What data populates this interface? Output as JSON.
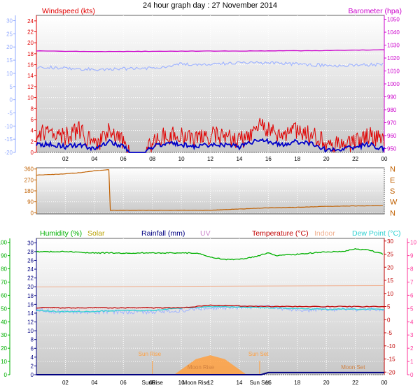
{
  "title": "24 hour graph day : 27 November 2014",
  "colors": {
    "wind": "#e00000",
    "wind_avg": "#0000c8",
    "baro": "#cc00cc",
    "temp_axis": "#8fa8ff",
    "dir": "#c06000",
    "humidity": "#00b000",
    "solar": "#b8a000",
    "rain": "#000080",
    "uv": "#cc88cc",
    "temperature": "#c00000",
    "indoor": "#f0b090",
    "dewpoint": "#30d0d0",
    "temp_line": "#a0b4ff",
    "sun": "#ffa040",
    "moon": "#d08040",
    "pink_axis": "#ff3399"
  },
  "chart_data": [
    {
      "type": "line",
      "title": "24 hour graph day : 27 November 2014",
      "x_ticks": [
        "02",
        "04",
        "06",
        "08",
        "10",
        "12",
        "14",
        "16",
        "18",
        "20",
        "22",
        "00"
      ],
      "labels": {
        "left": "Windspeed (kts)",
        "right": "Barometer (hpa)"
      },
      "left_axis": {
        "ticks": [
          0,
          2,
          4,
          6,
          8,
          10,
          12,
          14,
          16,
          18,
          20,
          22,
          24
        ],
        "ylim": [
          0,
          25
        ]
      },
      "outer_axis": {
        "ticks": [
          -20,
          -15,
          -10,
          -5,
          0,
          5,
          10,
          15,
          20,
          25,
          30
        ],
        "ylim": [
          -20,
          32
        ]
      },
      "right_axis": {
        "ticks": [
          950,
          960,
          970,
          980,
          990,
          1000,
          1010,
          1020,
          1030,
          1040,
          1050
        ],
        "ylim": [
          947,
          1053
        ]
      },
      "series": [
        {
          "key": "wind_gust",
          "x": [
            0,
            1,
            2,
            3,
            4,
            5,
            6,
            6.5,
            7,
            7.5,
            8,
            9,
            10,
            11,
            12,
            13,
            14,
            15,
            15.4,
            16,
            17,
            18,
            19,
            20,
            21,
            22,
            23,
            24
          ],
          "y": [
            3,
            4,
            3,
            4,
            1,
            4,
            2,
            0,
            0,
            0,
            2,
            3,
            3,
            2,
            3,
            3,
            2,
            4,
            6,
            4,
            3,
            4,
            3,
            2,
            1,
            2,
            3,
            2
          ]
        },
        {
          "key": "wind_avg",
          "x": [
            0,
            1,
            2,
            3,
            4,
            5,
            6,
            6.5,
            7,
            7.5,
            8,
            9,
            10,
            11,
            12,
            13,
            14,
            15,
            15.5,
            16,
            17,
            18,
            19,
            20,
            21,
            22,
            23,
            24
          ],
          "y": [
            1.5,
            1.5,
            1,
            1.5,
            0.5,
            2,
            1,
            0,
            0,
            0,
            1,
            1.5,
            1.5,
            1,
            1.5,
            1.5,
            1,
            2,
            2.5,
            2,
            1.5,
            2,
            1.5,
            0.5,
            0.5,
            1,
            1.5,
            0.5
          ]
        },
        {
          "key": "barometer",
          "x": [
            0,
            4,
            8,
            12,
            16,
            20,
            24
          ],
          "y": [
            1025.5,
            1025,
            1025.2,
            1025.4,
            1025.5,
            1025.8,
            1026.4
          ]
        },
        {
          "key": "temperature",
          "x": [
            0,
            4,
            8,
            10,
            12,
            14,
            16,
            18,
            20,
            22,
            24
          ],
          "y": [
            12.5,
            11.5,
            12,
            13.5,
            13.5,
            14,
            14,
            13.5,
            13,
            13,
            13.5
          ]
        }
      ]
    },
    {
      "type": "line",
      "x_ticks": [],
      "left_axis": {
        "ticks": [
          0,
          90,
          180,
          270,
          360
        ],
        "ylim": [
          -10,
          370
        ]
      },
      "right_axis": {
        "ticks": [
          "N",
          "W",
          "S",
          "E",
          "N"
        ]
      },
      "series": [
        {
          "key": "wind_direction",
          "x": [
            0,
            2,
            3,
            4,
            5,
            5.1,
            12,
            16,
            18,
            20,
            24
          ],
          "y": [
            310,
            320,
            330,
            345,
            355,
            20,
            20,
            40,
            45,
            52,
            60
          ]
        }
      ]
    },
    {
      "type": "line",
      "x_ticks": [
        "02",
        "04",
        "06",
        "08",
        "10",
        "12",
        "14",
        "16",
        "18",
        "20",
        "22",
        "00"
      ],
      "labels": {
        "humidity": "Humidity (%)",
        "solar": "Solar",
        "rainfall": "Rainfall (mm)",
        "uv": "UV",
        "temperature": "Temperature (°C)",
        "indoor": "Indoor",
        "dewpoint": "Dew Point (°C)"
      },
      "left_outer_axis": {
        "ticks": [
          0,
          10,
          20,
          30,
          40,
          50,
          60,
          70,
          80,
          90,
          100
        ]
      },
      "left_inner_axis": {
        "ticks": [
          0,
          2,
          4,
          6,
          8,
          10,
          12,
          14,
          16,
          18,
          20,
          22,
          24,
          26,
          28,
          30
        ]
      },
      "right_inner_axis": {
        "ticks": [
          -20,
          -15,
          -10,
          -5,
          0,
          5,
          10,
          15,
          20,
          25,
          30
        ]
      },
      "right_outer_axis": {
        "ticks": [
          0,
          1,
          2,
          3,
          4,
          5,
          6,
          7,
          8,
          9,
          10
        ]
      },
      "annotations": [
        "Sun Rise",
        "Sun Set",
        "Moon Rise",
        "Moon Set"
      ],
      "x_overlap_labels": [
        "SunRise",
        "Moon Rise",
        "Sun Set"
      ],
      "series": [
        {
          "key": "humidity",
          "x": [
            0,
            2,
            4,
            6,
            8,
            10,
            11,
            12,
            13,
            14,
            15,
            16,
            16.5,
            18,
            20,
            21,
            22,
            23,
            24
          ],
          "y": [
            93,
            93,
            92,
            92,
            92,
            92,
            92,
            89,
            87,
            87,
            89,
            92,
            90,
            91,
            93,
            93,
            95,
            94,
            91
          ]
        },
        {
          "key": "temperature",
          "x": [
            0,
            4,
            8,
            10,
            11,
            12,
            16,
            20,
            24
          ],
          "y": [
            4.5,
            4.5,
            4.5,
            4.5,
            5,
            5.5,
            5,
            5,
            5
          ]
        },
        {
          "key": "dewpoint",
          "x": [
            0,
            2,
            4,
            6,
            8,
            10,
            12,
            16,
            20,
            24
          ],
          "y": [
            3.5,
            3,
            3.2,
            3.5,
            3.5,
            4.5,
            5,
            4.5,
            4,
            4
          ]
        },
        {
          "key": "temp_thin",
          "x": [
            0,
            2,
            4,
            8,
            10,
            12,
            16,
            18,
            20,
            24
          ],
          "y": [
            3.5,
            3,
            3,
            3,
            3.5,
            4.5,
            5,
            3.5,
            4,
            4
          ]
        },
        {
          "key": "indoor",
          "x": [
            0,
            24
          ],
          "y": [
            12.5,
            13
          ]
        },
        {
          "key": "rainfall",
          "x": [
            0,
            15.5,
            16,
            24
          ],
          "y": [
            0,
            0,
            0.5,
            0.5
          ]
        },
        {
          "key": "solar",
          "x": [
            9.5,
            11,
            12,
            13,
            14.5
          ],
          "y": [
            0,
            40,
            50,
            40,
            0
          ]
        }
      ]
    }
  ]
}
